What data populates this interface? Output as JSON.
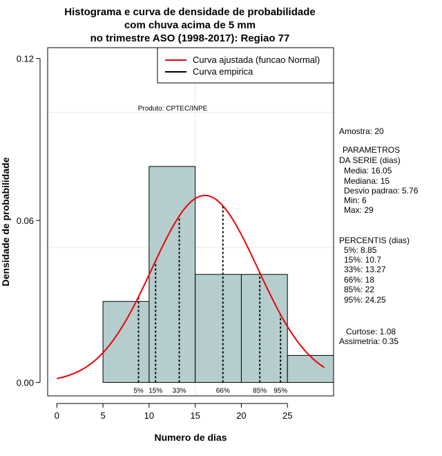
{
  "colors": {
    "bar_fill": "#b5cdcd",
    "bar_stroke": "#000000",
    "curve": "#ee0000",
    "grid": "#bbbbbb",
    "empirical": "#000000"
  },
  "chart_data": {
    "type": "bar",
    "title_lines": [
      "Histograma e curva de densidade de probabilidade",
      "com chuva acima de 5 mm",
      "no trimestre ASO (1998-2017): Regiao 77"
    ],
    "xlabel": "Numero de dias",
    "ylabel": "Densidade de probabilidade",
    "xlim": [
      -1,
      30
    ],
    "ylim": [
      -0.005,
      0.124
    ],
    "x_ticks": [
      0,
      5,
      10,
      15,
      20,
      25
    ],
    "y_ticks": [
      0.0,
      0.06,
      0.12
    ],
    "y_tick_labels": [
      "0.00",
      "0.06",
      "0.12"
    ],
    "bins": [
      {
        "start": 5,
        "end": 10,
        "density": 0.03
      },
      {
        "start": 10,
        "end": 15,
        "density": 0.08
      },
      {
        "start": 15,
        "end": 20,
        "density": 0.04
      },
      {
        "start": 20,
        "end": 25,
        "density": 0.04
      },
      {
        "start": 25,
        "end": 30,
        "density": 0.01
      }
    ],
    "normal_curve": {
      "mean": 16.05,
      "sd": 5.76,
      "x_from": 0,
      "x_to": 29
    },
    "percentile_lines": [
      {
        "label": "5%",
        "x": 8.85
      },
      {
        "label": "15%",
        "x": 10.7
      },
      {
        "label": "33%",
        "x": 13.27
      },
      {
        "label": "66%",
        "x": 18
      },
      {
        "label": "85%",
        "x": 22
      },
      {
        "label": "95%",
        "x": 24.25
      }
    ],
    "legend": {
      "position": "top-right",
      "entries": [
        {
          "label": "Curva ajustada (funcao Normal)",
          "color": "#ee0000"
        },
        {
          "label": "Curva empirica",
          "color": "#000000"
        }
      ]
    },
    "product_label": "Produto: CPTEC/INPE",
    "grid": true,
    "grid_y_values": [
      0.05,
      0.1
    ],
    "grid_x_values": [
      15
    ]
  },
  "side_panel": {
    "amostra": "Amostra: 20",
    "parametros_title": "PARAMETROS",
    "parametros_subtitle": "DA SERIE (dias)",
    "media": "Media: 16.05",
    "mediana": "Mediana: 15",
    "desvio": "Desvio padrao: 5.76",
    "min": "Min: 6",
    "max": "Max: 29",
    "percentis_title": "PERCENTIS (dias)",
    "p5": "5%: 8.85",
    "p15": "15%: 10.7",
    "p33": "33%: 13.27",
    "p66": "66%: 18",
    "p85": "85%: 22",
    "p95": "95%: 24.25",
    "curtose": "Curtose: 1.08",
    "assimetria": "Assimetria: 0.35"
  }
}
